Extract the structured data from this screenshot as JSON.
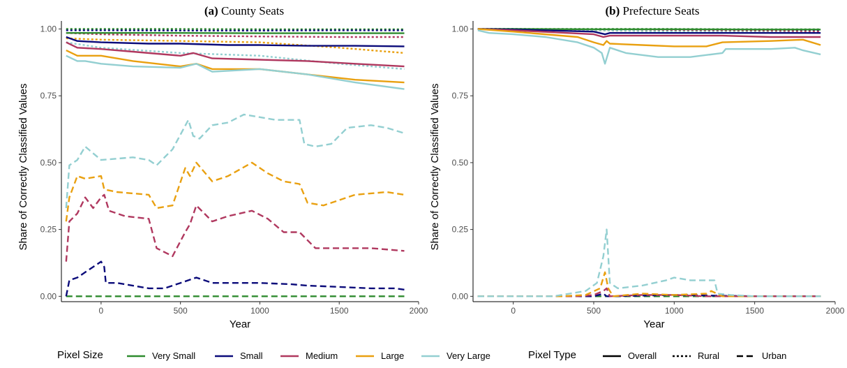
{
  "panels": [
    {
      "tag": "(a)",
      "name": "County Seats"
    },
    {
      "tag": "(b)",
      "name": "Prefecture Seats"
    }
  ],
  "axes": {
    "xlabel": "Year",
    "ylabel": "Share of Correctly Classified Values",
    "xticks": [
      0,
      500,
      1000,
      1500,
      2000
    ],
    "yticks": [
      "0.00",
      "0.25",
      "0.50",
      "0.75",
      "1.00"
    ],
    "xlim": [
      -250,
      2000
    ],
    "ylim": [
      -0.02,
      1.03
    ]
  },
  "legend": {
    "size_title": "Pixel Size",
    "type_title": "Pixel Type",
    "sizes": [
      {
        "label": "Very Small",
        "color": "#2e8b2e"
      },
      {
        "label": "Small",
        "color": "#0b0b7a"
      },
      {
        "label": "Medium",
        "color": "#b0385f"
      },
      {
        "label": "Large",
        "color": "#e9a010"
      },
      {
        "label": "Very Large",
        "color": "#93cfd1"
      }
    ],
    "types": [
      {
        "label": "Overall",
        "dash": "solid"
      },
      {
        "label": "Rural",
        "dash": "dotted"
      },
      {
        "label": "Urban",
        "dash": "dashed"
      }
    ]
  },
  "chart_data": [
    {
      "type": "line",
      "title": "(a) County Seats",
      "xlabel": "Year",
      "ylabel": "Share of Correctly Classified Values",
      "xlim": [
        -250,
        2000
      ],
      "ylim": [
        0,
        1
      ],
      "series": [
        {
          "name": "Very Small Overall",
          "size": "Very Small",
          "pixel_type": "Overall",
          "x": [
            -220,
            0,
            500,
            1000,
            1500,
            1910
          ],
          "y": [
            0.985,
            0.985,
            0.985,
            0.984,
            0.984,
            0.984
          ]
        },
        {
          "name": "Very Small Rural",
          "size": "Very Small",
          "pixel_type": "Rural",
          "x": [
            -220,
            0,
            500,
            1000,
            1500,
            1910
          ],
          "y": [
            1.0,
            1.0,
            1.0,
            0.999,
            0.999,
            0.999
          ]
        },
        {
          "name": "Very Small Urban",
          "size": "Very Small",
          "pixel_type": "Urban",
          "x": [
            -220,
            0,
            500,
            1000,
            1500,
            1910
          ],
          "y": [
            0.0,
            0.0,
            0.0,
            0.0,
            0.0,
            0.0
          ]
        },
        {
          "name": "Small Overall",
          "size": "Small",
          "pixel_type": "Overall",
          "x": [
            -220,
            -150,
            0,
            300,
            500,
            800,
            1000,
            1300,
            1600,
            1910
          ],
          "y": [
            0.97,
            0.955,
            0.95,
            0.945,
            0.945,
            0.94,
            0.94,
            0.937,
            0.937,
            0.935
          ]
        },
        {
          "name": "Small Rural",
          "size": "Small",
          "pixel_type": "Rural",
          "x": [
            -220,
            0,
            500,
            1000,
            1500,
            1910
          ],
          "y": [
            0.995,
            0.995,
            0.994,
            0.994,
            0.995,
            0.995
          ]
        },
        {
          "name": "Small Urban",
          "size": "Small",
          "pixel_type": "Urban",
          "x": [
            -220,
            -200,
            -150,
            -100,
            0,
            20,
            30,
            100,
            300,
            400,
            500,
            600,
            700,
            900,
            1000,
            1200,
            1300,
            1500,
            1700,
            1850,
            1910
          ],
          "y": [
            0.0,
            0.06,
            0.07,
            0.09,
            0.13,
            0.11,
            0.05,
            0.05,
            0.03,
            0.03,
            0.05,
            0.07,
            0.05,
            0.05,
            0.05,
            0.045,
            0.04,
            0.035,
            0.03,
            0.03,
            0.025
          ]
        },
        {
          "name": "Medium Overall",
          "size": "Medium",
          "pixel_type": "Overall",
          "x": [
            -220,
            -150,
            0,
            200,
            500,
            580,
            700,
            1000,
            1300,
            1600,
            1910
          ],
          "y": [
            0.95,
            0.93,
            0.925,
            0.915,
            0.9,
            0.91,
            0.89,
            0.885,
            0.88,
            0.87,
            0.86
          ]
        },
        {
          "name": "Medium Rural",
          "size": "Medium",
          "pixel_type": "Rural",
          "x": [
            -220,
            0,
            500,
            1000,
            1500,
            1910
          ],
          "y": [
            0.985,
            0.98,
            0.975,
            0.972,
            0.97,
            0.97
          ]
        },
        {
          "name": "Medium Urban",
          "size": "Medium",
          "pixel_type": "Urban",
          "x": [
            -220,
            -200,
            -150,
            -100,
            -50,
            0,
            20,
            50,
            150,
            300,
            350,
            450,
            530,
            560,
            600,
            700,
            800,
            950,
            1050,
            1150,
            1250,
            1350,
            1500,
            1700,
            1910
          ],
          "y": [
            0.13,
            0.28,
            0.31,
            0.37,
            0.33,
            0.37,
            0.38,
            0.32,
            0.3,
            0.29,
            0.18,
            0.15,
            0.24,
            0.27,
            0.34,
            0.28,
            0.3,
            0.32,
            0.29,
            0.24,
            0.24,
            0.18,
            0.18,
            0.18,
            0.17
          ]
        },
        {
          "name": "Large Overall",
          "size": "Large",
          "pixel_type": "Overall",
          "x": [
            -220,
            -150,
            0,
            200,
            500,
            600,
            700,
            1000,
            1300,
            1600,
            1910
          ],
          "y": [
            0.92,
            0.9,
            0.9,
            0.88,
            0.86,
            0.87,
            0.85,
            0.85,
            0.83,
            0.81,
            0.8
          ]
        },
        {
          "name": "Large Rural",
          "size": "Large",
          "pixel_type": "Rural",
          "x": [
            -220,
            0,
            500,
            1000,
            1500,
            1910
          ],
          "y": [
            0.965,
            0.96,
            0.955,
            0.95,
            0.93,
            0.91
          ]
        },
        {
          "name": "Large Urban",
          "size": "Large",
          "pixel_type": "Urban",
          "x": [
            -220,
            -200,
            -150,
            -100,
            0,
            20,
            100,
            300,
            350,
            450,
            530,
            560,
            600,
            700,
            800,
            950,
            1050,
            1150,
            1250,
            1300,
            1400,
            1600,
            1800,
            1910
          ],
          "y": [
            0.28,
            0.37,
            0.45,
            0.44,
            0.45,
            0.4,
            0.39,
            0.38,
            0.33,
            0.34,
            0.48,
            0.45,
            0.5,
            0.43,
            0.45,
            0.5,
            0.46,
            0.43,
            0.42,
            0.35,
            0.34,
            0.38,
            0.39,
            0.38
          ]
        },
        {
          "name": "Very Large Overall",
          "size": "Very Large",
          "pixel_type": "Overall",
          "x": [
            -220,
            -150,
            -100,
            0,
            200,
            500,
            600,
            700,
            1000,
            1300,
            1600,
            1910
          ],
          "y": [
            0.9,
            0.88,
            0.88,
            0.87,
            0.86,
            0.855,
            0.87,
            0.84,
            0.85,
            0.83,
            0.8,
            0.775
          ]
        },
        {
          "name": "Very Large Rural",
          "size": "Very Large",
          "pixel_type": "Rural",
          "x": [
            -220,
            0,
            500,
            1000,
            1500,
            1910
          ],
          "y": [
            0.95,
            0.93,
            0.91,
            0.9,
            0.87,
            0.85
          ]
        },
        {
          "name": "Very Large Urban",
          "size": "Very Large",
          "pixel_type": "Urban",
          "x": [
            -220,
            -200,
            -150,
            -100,
            0,
            200,
            300,
            350,
            450,
            550,
            580,
            620,
            700,
            800,
            900,
            1000,
            1100,
            1250,
            1280,
            1350,
            1450,
            1550,
            1700,
            1800,
            1910
          ],
          "y": [
            0.33,
            0.49,
            0.51,
            0.56,
            0.51,
            0.52,
            0.51,
            0.49,
            0.55,
            0.66,
            0.6,
            0.59,
            0.64,
            0.65,
            0.68,
            0.67,
            0.66,
            0.66,
            0.57,
            0.56,
            0.57,
            0.63,
            0.64,
            0.63,
            0.61
          ]
        }
      ]
    },
    {
      "type": "line",
      "title": "(b) Prefecture Seats",
      "xlabel": "Year",
      "ylabel": "Share of Correctly Classified Values",
      "xlim": [
        -250,
        2000
      ],
      "ylim": [
        0,
        1
      ],
      "series": [
        {
          "name": "Very Small Overall",
          "size": "Very Small",
          "pixel_type": "Overall",
          "x": [
            -220,
            0,
            500,
            1000,
            1500,
            1910
          ],
          "y": [
            1.0,
            1.0,
            0.999,
            0.999,
            0.998,
            0.998
          ]
        },
        {
          "name": "Very Small Rural",
          "size": "Very Small",
          "pixel_type": "Rural",
          "x": [
            -220,
            0,
            500,
            1000,
            1500,
            1910
          ],
          "y": [
            1.0,
            1.0,
            1.0,
            1.0,
            0.999,
            0.999
          ]
        },
        {
          "name": "Very Small Urban",
          "size": "Very Small",
          "pixel_type": "Urban",
          "x": [
            -220,
            0,
            500,
            1000,
            1500,
            1910
          ],
          "y": [
            0.0,
            0.0,
            0.0,
            0.0,
            0.0,
            0.0
          ]
        },
        {
          "name": "Small Overall",
          "size": "Small",
          "pixel_type": "Overall",
          "x": [
            -220,
            0,
            500,
            570,
            600,
            1000,
            1500,
            1910
          ],
          "y": [
            1.0,
            0.998,
            0.99,
            0.98,
            0.985,
            0.985,
            0.985,
            0.985
          ]
        },
        {
          "name": "Small Rural",
          "size": "Small",
          "pixel_type": "Rural",
          "x": [
            -220,
            0,
            500,
            1000,
            1500,
            1910
          ],
          "y": [
            1.0,
            1.0,
            0.998,
            0.997,
            0.997,
            0.996
          ]
        },
        {
          "name": "Small Urban",
          "size": "Small",
          "pixel_type": "Urban",
          "x": [
            -220,
            500,
            560,
            580,
            600,
            1000,
            1500,
            1910
          ],
          "y": [
            0.0,
            0.0,
            0.01,
            0.0,
            0.0,
            0.005,
            0.0,
            0.0
          ]
        },
        {
          "name": "Medium Overall",
          "size": "Medium",
          "pixel_type": "Overall",
          "x": [
            -220,
            0,
            500,
            560,
            600,
            1000,
            1300,
            1600,
            1910
          ],
          "y": [
            1.0,
            0.995,
            0.98,
            0.97,
            0.975,
            0.975,
            0.975,
            0.97,
            0.97
          ]
        },
        {
          "name": "Medium Rural",
          "size": "Medium",
          "pixel_type": "Rural",
          "x": [
            -220,
            0,
            500,
            1000,
            1500,
            1910
          ],
          "y": [
            1.0,
            0.998,
            0.995,
            0.995,
            0.993,
            0.99
          ]
        },
        {
          "name": "Medium Urban",
          "size": "Medium",
          "pixel_type": "Urban",
          "x": [
            -220,
            400,
            500,
            560,
            580,
            600,
            800,
            1000,
            1200,
            1500,
            1910
          ],
          "y": [
            0.0,
            0.0,
            0.005,
            0.02,
            0.03,
            0.0,
            0.005,
            0.005,
            0.0,
            0.0,
            0.0
          ]
        },
        {
          "name": "Large Overall",
          "size": "Large",
          "pixel_type": "Overall",
          "x": [
            -220,
            0,
            400,
            500,
            560,
            580,
            600,
            800,
            1000,
            1200,
            1300,
            1600,
            1800,
            1910
          ],
          "y": [
            1.0,
            0.99,
            0.97,
            0.95,
            0.94,
            0.955,
            0.945,
            0.94,
            0.935,
            0.935,
            0.95,
            0.955,
            0.96,
            0.94
          ]
        },
        {
          "name": "Large Rural",
          "size": "Large",
          "pixel_type": "Rural",
          "x": [
            -220,
            0,
            500,
            1000,
            1500,
            1910
          ],
          "y": [
            1.0,
            0.998,
            0.995,
            0.99,
            0.988,
            0.985
          ]
        },
        {
          "name": "Large Urban",
          "size": "Large",
          "pixel_type": "Urban",
          "x": [
            -220,
            300,
            450,
            540,
            570,
            590,
            620,
            800,
            1000,
            1200,
            1230,
            1300,
            1500,
            1910
          ],
          "y": [
            0.0,
            0.0,
            0.005,
            0.03,
            0.09,
            0.03,
            0.0,
            0.01,
            0.005,
            0.01,
            0.02,
            0.0,
            0.0,
            0.0
          ]
        },
        {
          "name": "Very Large Overall",
          "size": "Very Large",
          "pixel_type": "Overall",
          "x": [
            -220,
            -150,
            0,
            200,
            400,
            500,
            550,
            570,
            600,
            700,
            900,
            1100,
            1300,
            1320,
            1600,
            1750,
            1800,
            1910
          ],
          "y": [
            0.995,
            0.985,
            0.98,
            0.97,
            0.95,
            0.93,
            0.91,
            0.87,
            0.93,
            0.91,
            0.895,
            0.895,
            0.91,
            0.925,
            0.925,
            0.93,
            0.92,
            0.905
          ]
        },
        {
          "name": "Very Large Rural",
          "size": "Very Large",
          "pixel_type": "Rural",
          "x": [
            -220,
            0,
            500,
            1000,
            1500,
            1910
          ],
          "y": [
            1.0,
            0.998,
            0.995,
            0.99,
            0.988,
            0.985
          ]
        },
        {
          "name": "Very Large Urban",
          "size": "Very Large",
          "pixel_type": "Urban",
          "x": [
            -220,
            250,
            350,
            450,
            520,
            560,
            580,
            600,
            650,
            800,
            950,
            1000,
            1100,
            1250,
            1270,
            1350,
            1500,
            1700,
            1910
          ],
          "y": [
            0.0,
            0.0,
            0.01,
            0.02,
            0.05,
            0.15,
            0.25,
            0.05,
            0.03,
            0.04,
            0.06,
            0.07,
            0.06,
            0.06,
            0.01,
            0.005,
            0.0,
            0.0,
            0.0
          ]
        }
      ]
    }
  ]
}
